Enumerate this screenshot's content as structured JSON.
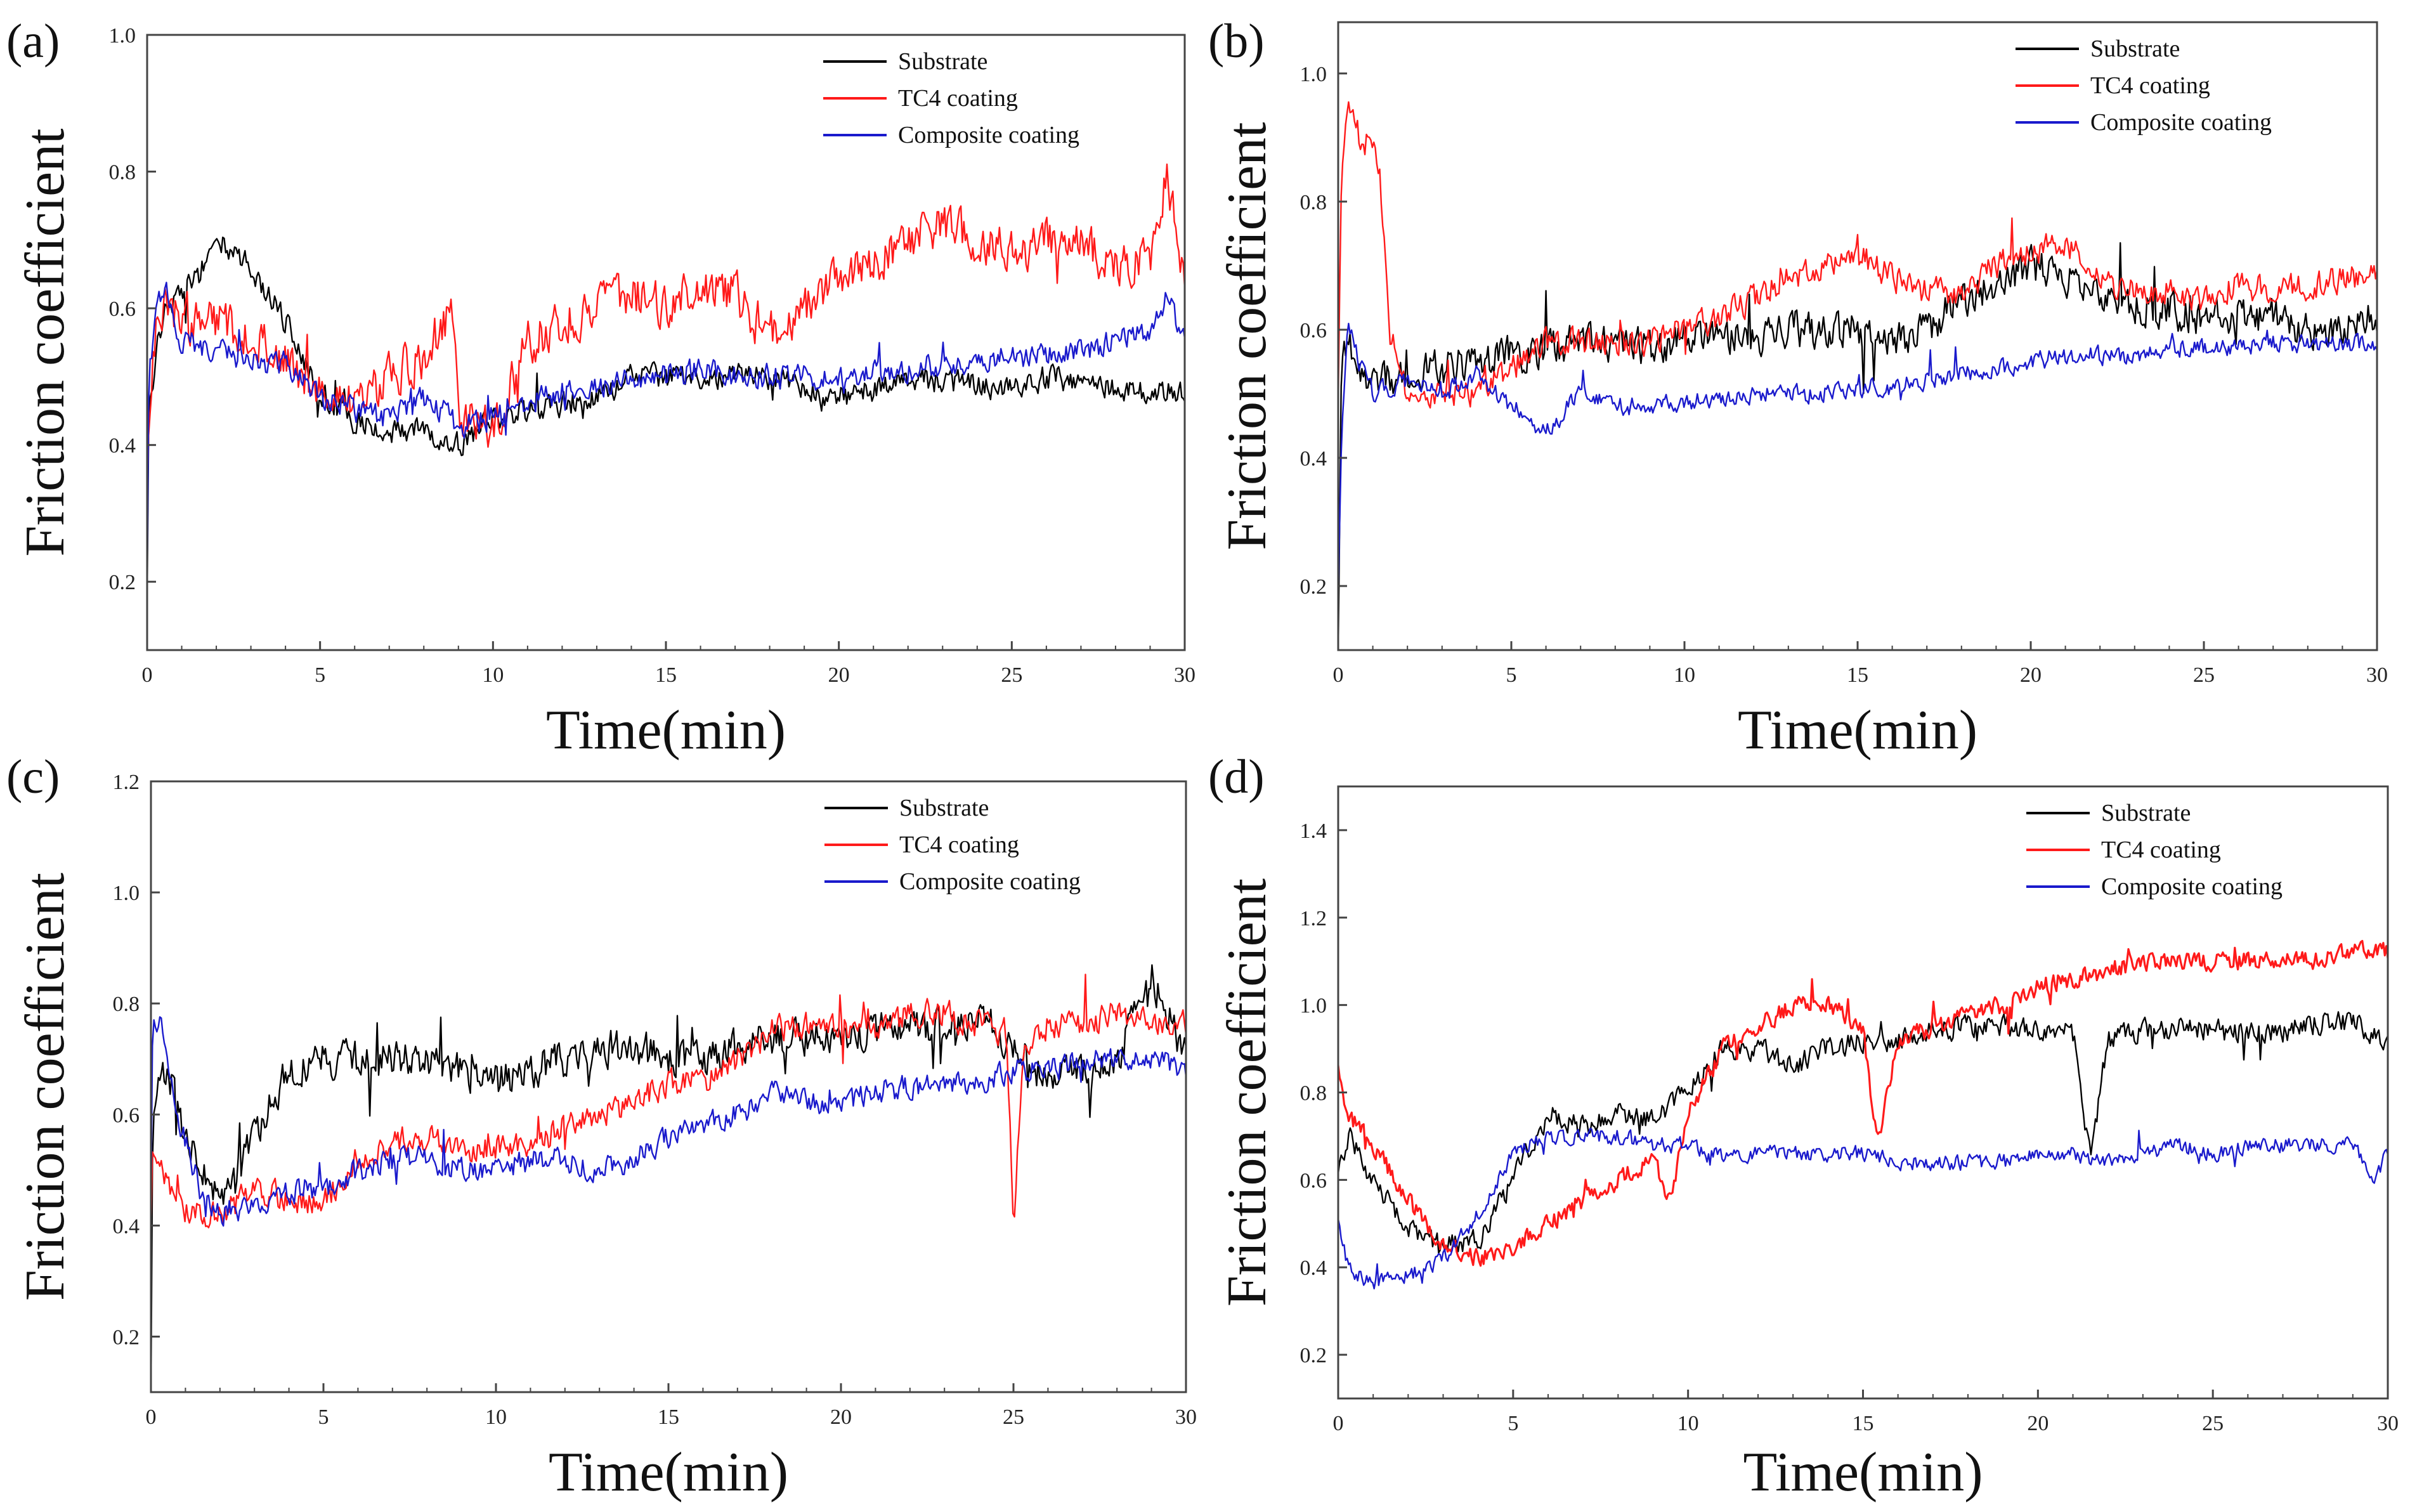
{
  "figure": {
    "panels": [
      "a",
      "b",
      "c",
      "d"
    ]
  },
  "colors": {
    "substrate": "#000000",
    "tc4": "#ff1a1a",
    "composite": "#1a1acc",
    "axis": "#444444",
    "background": "#ffffff"
  },
  "chart_data": [
    {
      "panel_label": "(a)",
      "type": "line",
      "xlabel": "Time(min)",
      "ylabel": "Friction coefficient",
      "xlim": [
        0,
        30
      ],
      "ylim": [
        0.1,
        1.0
      ],
      "xticks": [
        0,
        5,
        10,
        15,
        20,
        25,
        30
      ],
      "yticks": [
        0.2,
        0.4,
        0.6,
        0.8,
        1.0
      ],
      "xtick_labels": [
        "0",
        "5",
        "10",
        "15",
        "20",
        "25",
        "30"
      ],
      "ytick_labels": [
        "0.2",
        "0.4",
        "0.6",
        "0.8",
        "1.0"
      ],
      "legend": {
        "placement": "top-right",
        "labels": [
          "Substrate",
          "TC4 coating",
          "Composite coating"
        ]
      },
      "series": [
        {
          "name": "Substrate",
          "key": "substrate",
          "noise": 0.025,
          "x": [
            0,
            0.05,
            0.3,
            0.5,
            1,
            1.5,
            2,
            2.5,
            3,
            4,
            5,
            6,
            7,
            8,
            9,
            10,
            11,
            12,
            13,
            14,
            15,
            16,
            17,
            18,
            19,
            20,
            21,
            22,
            23,
            24,
            25,
            26,
            27,
            28,
            29,
            30
          ],
          "values": [
            0.17,
            0.45,
            0.55,
            0.6,
            0.62,
            0.65,
            0.7,
            0.68,
            0.66,
            0.58,
            0.48,
            0.43,
            0.42,
            0.42,
            0.4,
            0.44,
            0.45,
            0.46,
            0.47,
            0.5,
            0.5,
            0.5,
            0.5,
            0.5,
            0.48,
            0.47,
            0.48,
            0.5,
            0.49,
            0.49,
            0.48,
            0.5,
            0.49,
            0.48,
            0.48,
            0.48
          ]
        },
        {
          "name": "TC4 coating",
          "key": "tc4",
          "noise": 0.045,
          "x": [
            0,
            0.05,
            0.3,
            0.5,
            1,
            2,
            3,
            4,
            5,
            6,
            7,
            8,
            8.8,
            9,
            10,
            11,
            12,
            13,
            14,
            15,
            16,
            17,
            18,
            19,
            20,
            21,
            22,
            23,
            24,
            25,
            26,
            27,
            28,
            29,
            29.5,
            30
          ],
          "values": [
            0.3,
            0.45,
            0.6,
            0.62,
            0.58,
            0.58,
            0.56,
            0.52,
            0.48,
            0.46,
            0.5,
            0.53,
            0.6,
            0.45,
            0.42,
            0.55,
            0.58,
            0.6,
            0.62,
            0.6,
            0.63,
            0.62,
            0.56,
            0.6,
            0.64,
            0.66,
            0.7,
            0.72,
            0.7,
            0.68,
            0.7,
            0.7,
            0.66,
            0.67,
            0.8,
            0.62
          ]
        },
        {
          "name": "Composite coating",
          "key": "composite",
          "noise": 0.025,
          "x": [
            0,
            0.05,
            0.3,
            0.5,
            1,
            2,
            3,
            4,
            5,
            6,
            7,
            8,
            9,
            10,
            11,
            12,
            13,
            14,
            15,
            16,
            17,
            18,
            19,
            20,
            21,
            22,
            23,
            24,
            25,
            26,
            27,
            28,
            29,
            29.5,
            30
          ],
          "values": [
            0.2,
            0.5,
            0.6,
            0.64,
            0.55,
            0.54,
            0.52,
            0.52,
            0.47,
            0.45,
            0.44,
            0.47,
            0.43,
            0.44,
            0.46,
            0.48,
            0.48,
            0.5,
            0.5,
            0.51,
            0.5,
            0.5,
            0.5,
            0.5,
            0.51,
            0.51,
            0.52,
            0.52,
            0.53,
            0.53,
            0.54,
            0.55,
            0.57,
            0.62,
            0.55
          ]
        }
      ]
    },
    {
      "panel_label": "(b)",
      "type": "line",
      "xlabel": "Time(min)",
      "ylabel": "Friction coefficient",
      "xlim": [
        0,
        30
      ],
      "ylim": [
        0.1,
        1.08
      ],
      "xticks": [
        0,
        5,
        10,
        15,
        20,
        25,
        30
      ],
      "yticks": [
        0.2,
        0.4,
        0.6,
        0.8,
        1.0
      ],
      "xtick_labels": [
        "0",
        "5",
        "10",
        "15",
        "20",
        "25",
        "30"
      ],
      "ytick_labels": [
        "0.2",
        "0.4",
        "0.6",
        "0.8",
        "1.0"
      ],
      "legend": {
        "placement": "top-right",
        "labels": [
          "Substrate",
          "TC4 coating",
          "Composite coating"
        ]
      },
      "series": [
        {
          "name": "Substrate",
          "key": "substrate",
          "noise": 0.04,
          "x": [
            0,
            0.1,
            0.3,
            0.6,
            1,
            2,
            3,
            4,
            5,
            6,
            7,
            8,
            9,
            10,
            11,
            12,
            13,
            14,
            15,
            16,
            17,
            18,
            19,
            20,
            21,
            22,
            23,
            24,
            25,
            26,
            27,
            28,
            29,
            30
          ],
          "values": [
            0.12,
            0.55,
            0.6,
            0.55,
            0.52,
            0.53,
            0.54,
            0.55,
            0.56,
            0.57,
            0.58,
            0.58,
            0.57,
            0.58,
            0.6,
            0.58,
            0.6,
            0.6,
            0.6,
            0.58,
            0.6,
            0.65,
            0.66,
            0.7,
            0.68,
            0.65,
            0.64,
            0.63,
            0.62,
            0.62,
            0.62,
            0.6,
            0.6,
            0.62
          ]
        },
        {
          "name": "TC4 coating",
          "key": "tc4",
          "noise": 0.03,
          "x": [
            0,
            0.1,
            0.3,
            0.6,
            0.9,
            1.2,
            1.5,
            2,
            3,
            4,
            5,
            6,
            7,
            8,
            9,
            10,
            11,
            12,
            13,
            14,
            15,
            16,
            17,
            18,
            19,
            20,
            21,
            22,
            23,
            24,
            25,
            26,
            27,
            28,
            29,
            30
          ],
          "values": [
            0.5,
            0.85,
            0.95,
            0.9,
            0.92,
            0.85,
            0.6,
            0.5,
            0.5,
            0.5,
            0.54,
            0.58,
            0.58,
            0.58,
            0.58,
            0.6,
            0.62,
            0.65,
            0.68,
            0.7,
            0.72,
            0.68,
            0.66,
            0.66,
            0.7,
            0.72,
            0.74,
            0.68,
            0.66,
            0.66,
            0.65,
            0.67,
            0.66,
            0.67,
            0.68,
            0.68
          ]
        },
        {
          "name": "Composite coating",
          "key": "composite",
          "noise": 0.02,
          "x": [
            0,
            0.1,
            0.3,
            0.6,
            1,
            2,
            3,
            4,
            5,
            6,
            7,
            8,
            9,
            10,
            11,
            12,
            13,
            14,
            15,
            16,
            17,
            18,
            19,
            20,
            21,
            22,
            23,
            24,
            25,
            26,
            27,
            28,
            29,
            30
          ],
          "values": [
            0.2,
            0.45,
            0.62,
            0.55,
            0.5,
            0.52,
            0.5,
            0.53,
            0.48,
            0.44,
            0.5,
            0.48,
            0.48,
            0.49,
            0.49,
            0.5,
            0.5,
            0.5,
            0.51,
            0.51,
            0.52,
            0.53,
            0.54,
            0.55,
            0.56,
            0.56,
            0.56,
            0.57,
            0.57,
            0.57,
            0.58,
            0.58,
            0.58,
            0.57
          ]
        }
      ]
    },
    {
      "panel_label": "(c)",
      "type": "line",
      "xlabel": "Time(min)",
      "ylabel": "Friction coefficient",
      "xlim": [
        0,
        30
      ],
      "ylim": [
        0.1,
        1.2
      ],
      "xticks": [
        0,
        5,
        10,
        15,
        20,
        25,
        30
      ],
      "yticks": [
        0.2,
        0.4,
        0.6,
        0.8,
        1.0,
        1.2
      ],
      "xtick_labels": [
        "0",
        "5",
        "10",
        "15",
        "20",
        "25",
        "30"
      ],
      "ytick_labels": [
        "0.2",
        "0.4",
        "0.6",
        "0.8",
        "1.0",
        "1.2"
      ],
      "legend": {
        "placement": "top-right",
        "labels": [
          "Substrate",
          "TC4 coating",
          "Composite coating"
        ]
      },
      "series": [
        {
          "name": "Substrate",
          "key": "substrate",
          "noise": 0.045,
          "x": [
            0,
            0.05,
            0.3,
            0.6,
            1,
            1.5,
            2,
            2.5,
            3,
            3.5,
            4,
            5,
            6,
            7,
            8,
            9,
            10,
            11,
            12,
            13,
            14,
            15,
            16,
            17,
            18,
            19,
            20,
            21,
            22,
            23,
            24,
            25,
            26,
            27,
            28,
            29,
            30
          ],
          "values": [
            0.1,
            0.6,
            0.68,
            0.65,
            0.55,
            0.5,
            0.45,
            0.5,
            0.55,
            0.62,
            0.68,
            0.7,
            0.7,
            0.7,
            0.7,
            0.68,
            0.66,
            0.68,
            0.7,
            0.72,
            0.72,
            0.7,
            0.7,
            0.72,
            0.74,
            0.74,
            0.74,
            0.75,
            0.76,
            0.76,
            0.78,
            0.72,
            0.66,
            0.68,
            0.7,
            0.85,
            0.7
          ]
        },
        {
          "name": "TC4 coating",
          "key": "tc4",
          "noise": 0.035,
          "x": [
            0,
            0.05,
            0.3,
            0.6,
            1,
            2,
            3,
            4,
            5,
            6,
            7,
            8,
            9,
            10,
            11,
            12,
            13,
            14,
            15,
            16,
            17,
            18,
            19,
            20,
            21,
            22,
            23,
            24,
            24.8,
            25,
            25.3,
            26,
            27,
            28,
            29,
            30
          ],
          "values": [
            0.4,
            0.55,
            0.5,
            0.45,
            0.42,
            0.42,
            0.46,
            0.45,
            0.44,
            0.52,
            0.55,
            0.56,
            0.54,
            0.54,
            0.54,
            0.58,
            0.6,
            0.62,
            0.66,
            0.66,
            0.7,
            0.75,
            0.76,
            0.76,
            0.76,
            0.78,
            0.78,
            0.76,
            0.75,
            0.4,
            0.72,
            0.76,
            0.76,
            0.78,
            0.76,
            0.76
          ]
        },
        {
          "name": "Composite coating",
          "key": "composite",
          "noise": 0.03,
          "x": [
            0,
            0.05,
            0.3,
            0.6,
            1,
            1.5,
            2,
            3,
            4,
            5,
            6,
            7,
            8,
            9,
            10,
            11,
            12,
            13,
            14,
            15,
            16,
            17,
            18,
            19,
            20,
            21,
            22,
            23,
            24,
            25,
            26,
            27,
            28,
            29,
            30
          ],
          "values": [
            0.45,
            0.75,
            0.78,
            0.65,
            0.55,
            0.45,
            0.42,
            0.44,
            0.46,
            0.46,
            0.5,
            0.52,
            0.52,
            0.5,
            0.5,
            0.52,
            0.52,
            0.5,
            0.52,
            0.56,
            0.58,
            0.6,
            0.64,
            0.62,
            0.62,
            0.64,
            0.65,
            0.66,
            0.66,
            0.68,
            0.68,
            0.7,
            0.7,
            0.7,
            0.68
          ]
        }
      ]
    },
    {
      "panel_label": "(d)",
      "type": "line",
      "xlabel": "Time(min)",
      "ylabel": "Friction coefficient",
      "xlim": [
        0,
        30
      ],
      "ylim": [
        0.1,
        1.5
      ],
      "xticks": [
        0,
        5,
        10,
        15,
        20,
        25,
        30
      ],
      "yticks": [
        0.2,
        0.4,
        0.6,
        0.8,
        1.0,
        1.2,
        1.4
      ],
      "xtick_labels": [
        "0",
        "5",
        "10",
        "15",
        "20",
        "25",
        "30"
      ],
      "ytick_labels": [
        "0.2",
        "0.4",
        "0.6",
        "0.8",
        "1.0",
        "1.2",
        "1.4"
      ],
      "legend": {
        "placement": "top-right",
        "labels": [
          "Substrate",
          "TC4 coating",
          "Composite coating"
        ]
      },
      "series": [
        {
          "name": "Substrate",
          "key": "substrate",
          "noise": 0.035,
          "x": [
            0,
            0.3,
            1,
            2,
            3,
            4,
            5,
            6,
            7,
            8,
            9,
            10,
            11,
            12,
            13,
            14,
            15,
            16,
            17,
            18,
            19,
            20,
            21,
            21.5,
            22,
            23,
            24,
            25,
            26,
            27,
            28,
            29,
            30
          ],
          "values": [
            0.6,
            0.7,
            0.6,
            0.48,
            0.45,
            0.46,
            0.6,
            0.75,
            0.72,
            0.75,
            0.74,
            0.8,
            0.9,
            0.9,
            0.86,
            0.9,
            0.92,
            0.92,
            0.94,
            0.95,
            0.95,
            0.94,
            0.94,
            0.65,
            0.92,
            0.94,
            0.95,
            0.94,
            0.94,
            0.94,
            0.96,
            0.96,
            0.92
          ]
        },
        {
          "name": "TC4 coating",
          "key": "tc4",
          "noise": 0.03,
          "x": [
            0,
            0.3,
            1,
            2,
            3,
            4,
            5,
            6,
            7,
            8,
            9,
            9.5,
            10,
            11,
            12,
            13,
            14,
            15,
            15.4,
            16,
            17,
            18,
            19,
            20,
            21,
            22,
            23,
            24,
            25,
            26,
            27,
            28,
            29,
            30
          ],
          "values": [
            0.85,
            0.75,
            0.68,
            0.55,
            0.45,
            0.42,
            0.45,
            0.5,
            0.55,
            0.6,
            0.65,
            0.55,
            0.75,
            0.9,
            0.95,
            1.0,
            1.0,
            0.95,
            0.68,
            0.92,
            0.95,
            0.98,
            1.0,
            1.04,
            1.06,
            1.08,
            1.1,
            1.1,
            1.1,
            1.1,
            1.1,
            1.1,
            1.12,
            1.12
          ]
        },
        {
          "name": "Composite coating",
          "key": "composite",
          "noise": 0.025,
          "x": [
            0,
            0.3,
            1,
            2,
            3,
            4,
            5,
            6,
            7,
            8,
            9,
            10,
            11,
            12,
            13,
            14,
            15,
            16,
            17,
            18,
            19,
            20,
            21,
            22,
            23,
            24,
            25,
            26,
            27,
            28,
            29,
            29.6,
            30
          ],
          "values": [
            0.5,
            0.4,
            0.36,
            0.38,
            0.42,
            0.52,
            0.66,
            0.7,
            0.7,
            0.7,
            0.68,
            0.68,
            0.66,
            0.66,
            0.66,
            0.66,
            0.66,
            0.64,
            0.64,
            0.64,
            0.64,
            0.66,
            0.66,
            0.64,
            0.66,
            0.68,
            0.66,
            0.68,
            0.68,
            0.68,
            0.68,
            0.6,
            0.66
          ]
        }
      ]
    }
  ]
}
